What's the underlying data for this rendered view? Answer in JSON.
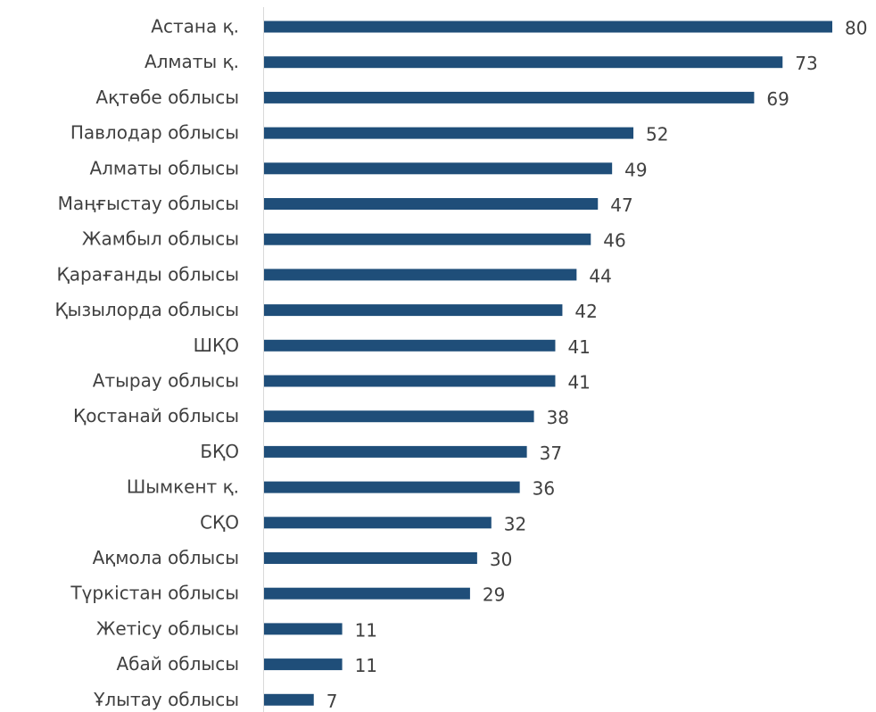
{
  "chart_data": {
    "type": "bar",
    "orientation": "horizontal",
    "categories": [
      "Астана қ.",
      "Алматы қ.",
      "Ақтөбе облысы",
      "Павлодар облысы",
      "Алматы облысы",
      "Маңғыстау облысы",
      "Жамбыл облысы",
      "Қарағанды облысы",
      "Қызылорда облысы",
      "ШҚО",
      "Атырау облысы",
      "Қостанай облысы",
      "БҚО",
      "Шымкент қ.",
      "СҚО",
      "Ақмола облысы",
      "Түркістан облысы",
      "Жетісу облысы",
      "Абай облысы",
      "Ұлытау облысы"
    ],
    "values": [
      80,
      73,
      69,
      52,
      49,
      47,
      46,
      44,
      42,
      41,
      41,
      38,
      37,
      36,
      32,
      30,
      29,
      11,
      11,
      7
    ],
    "color": "#1f4e79"
  }
}
